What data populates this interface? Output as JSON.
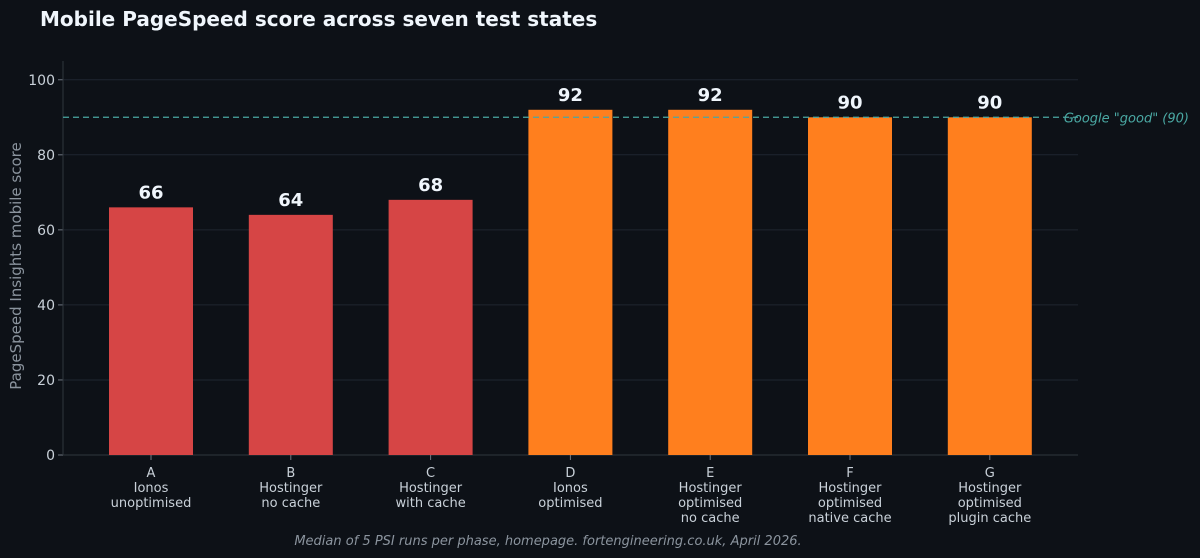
{
  "chart_data": {
    "type": "bar",
    "title": "Mobile PageSpeed score across seven test states",
    "xlabel": "",
    "ylabel": "PageSpeed Insights mobile score",
    "ylim": [
      0,
      105
    ],
    "yticks": [
      0,
      20,
      40,
      60,
      80,
      100
    ],
    "grid": true,
    "categories": [
      [
        "A",
        "Ionos",
        "unoptimised"
      ],
      [
        "B",
        "Hostinger",
        "no cache"
      ],
      [
        "C",
        "Hostinger",
        "with cache"
      ],
      [
        "D",
        "Ionos",
        "optimised"
      ],
      [
        "E",
        "Hostinger",
        "optimised",
        "no cache"
      ],
      [
        "F",
        "Hostinger",
        "optimised",
        "native cache"
      ],
      [
        "G",
        "Hostinger",
        "optimised",
        "plugin cache"
      ]
    ],
    "values": [
      66,
      64,
      68,
      92,
      92,
      90,
      90
    ],
    "bar_colors": [
      "#d64545",
      "#d64545",
      "#d64545",
      "#ff7f1e",
      "#ff7f1e",
      "#ff7f1e",
      "#ff7f1e"
    ],
    "reference_line": {
      "value": 90,
      "label": "Google \"good\" (90)",
      "color": "#4aa8a3"
    },
    "caption": "Median of 5 PSI runs per phase, homepage. fortengineering.co.uk, April 2026."
  }
}
